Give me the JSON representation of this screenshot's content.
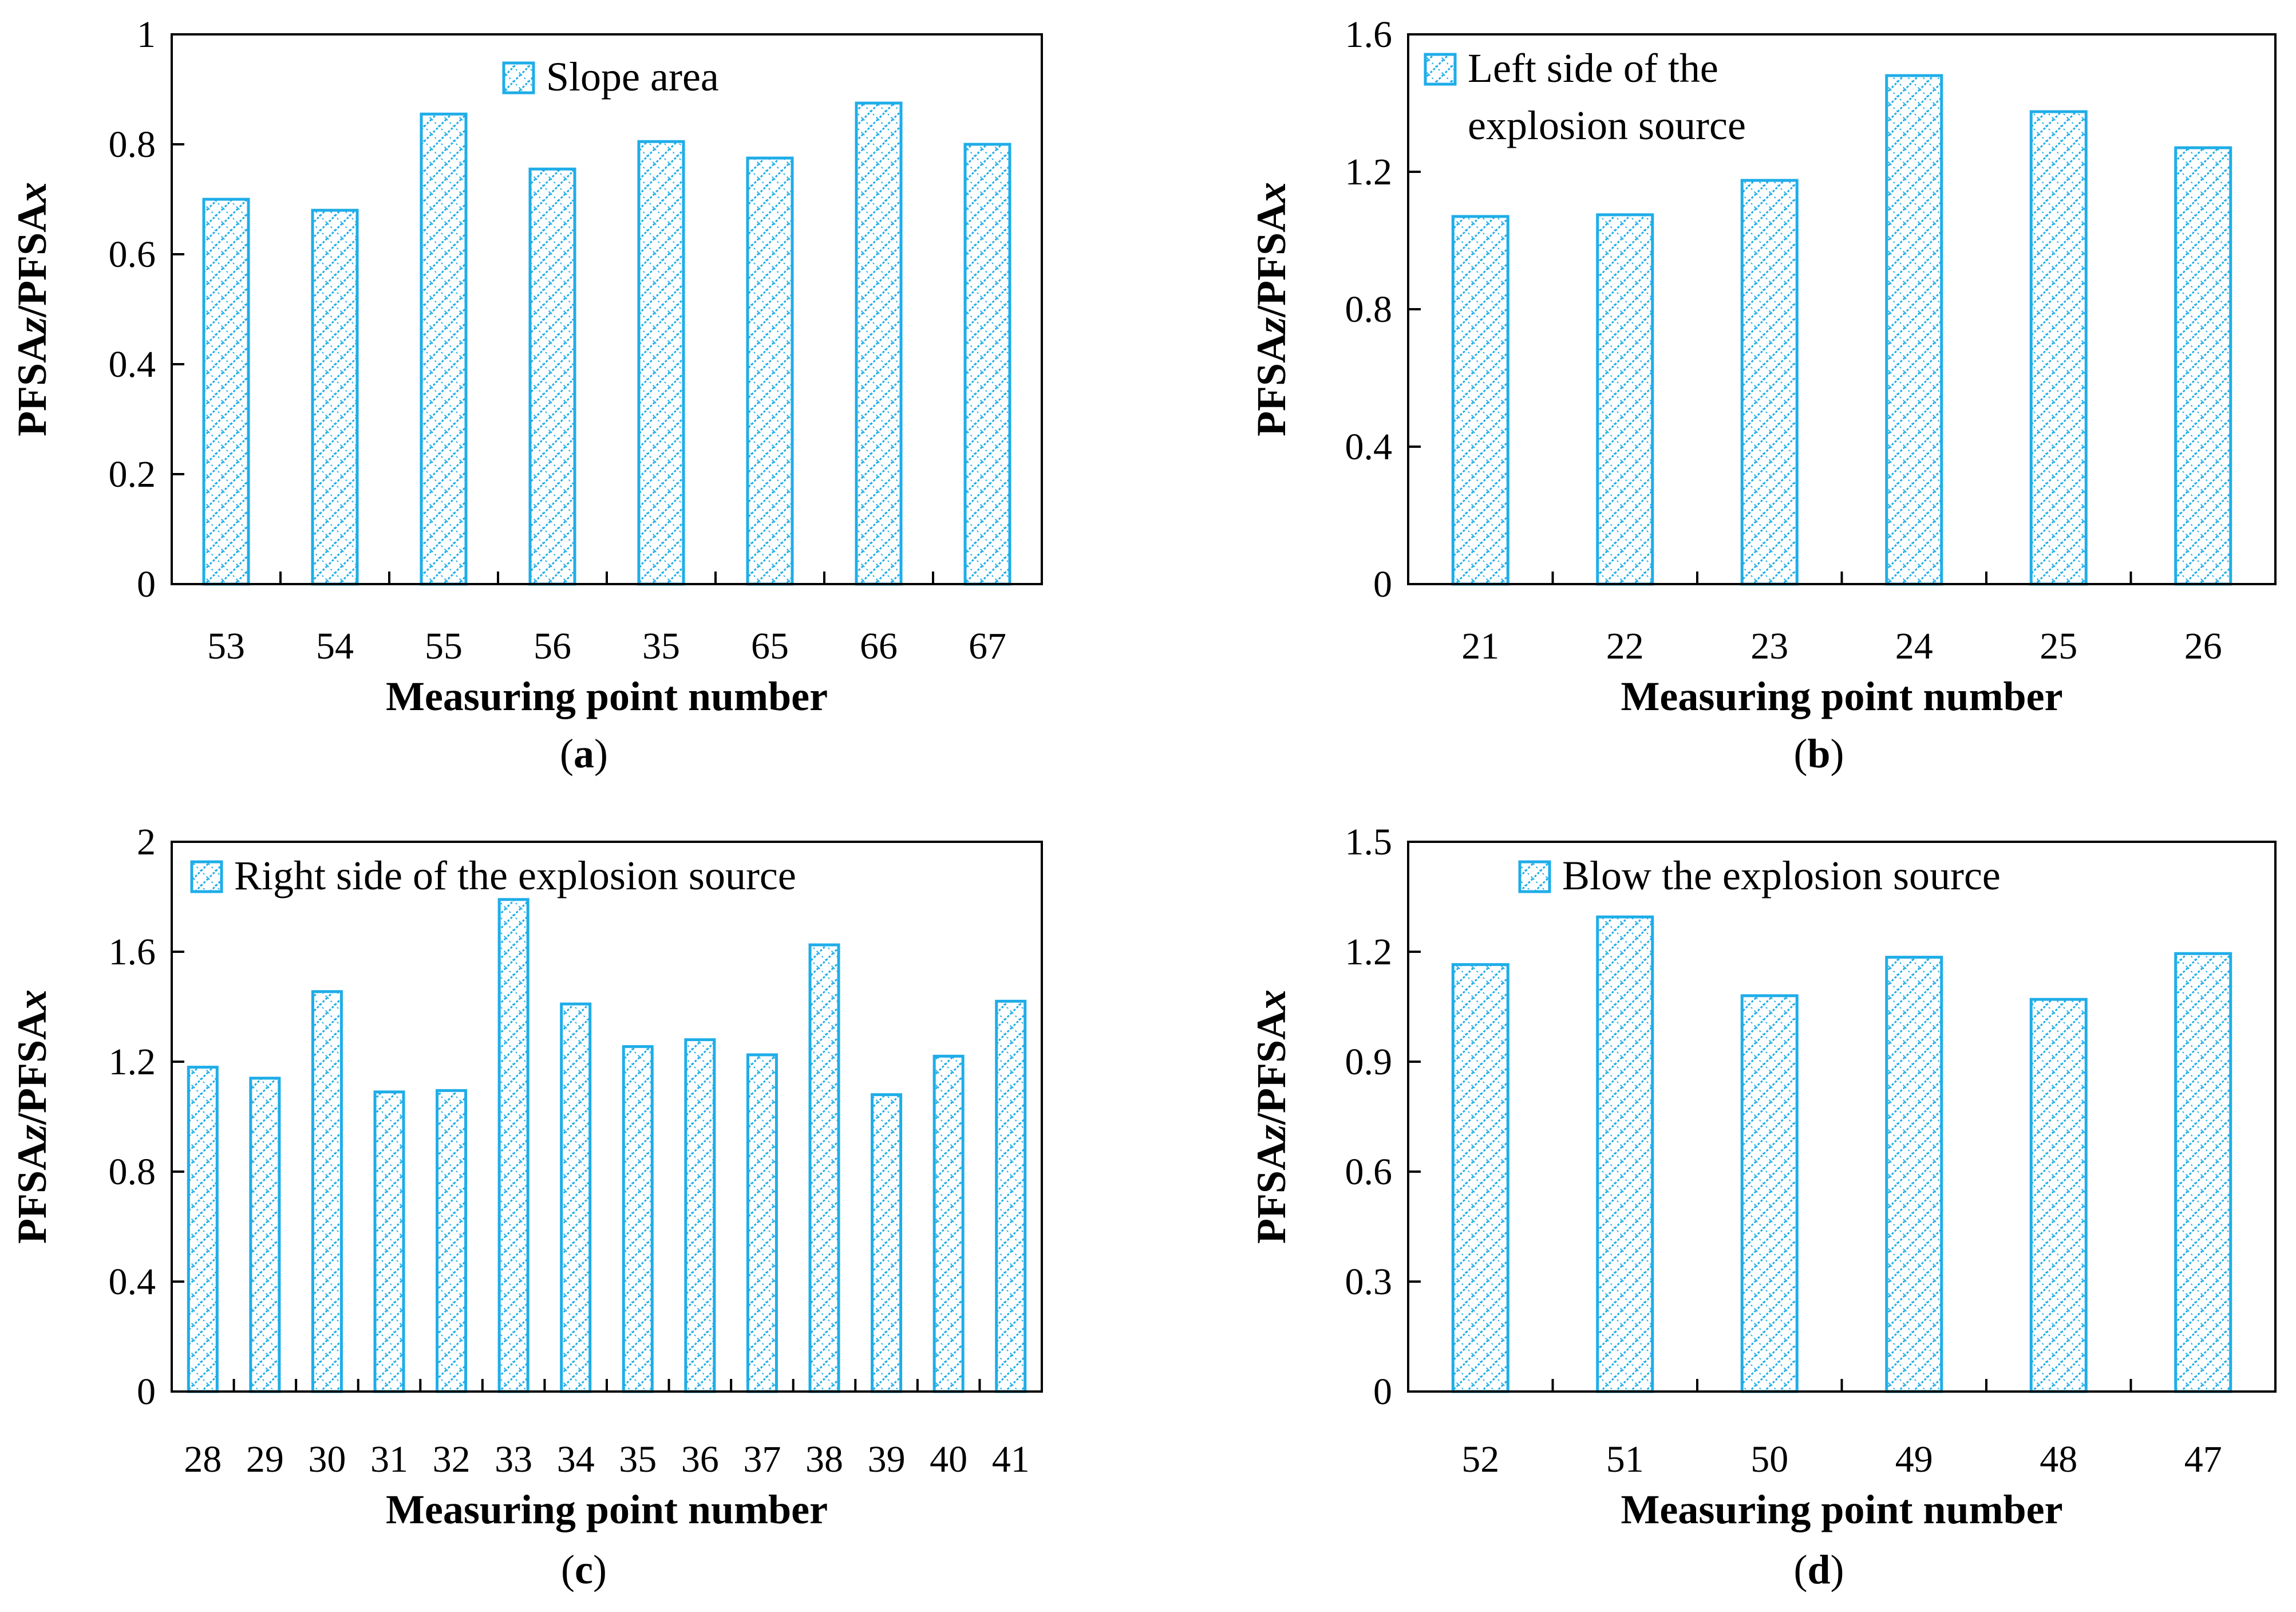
{
  "figure": {
    "colors": {
      "bar_stroke": "#1EADE8",
      "bar_hatch": "#1EADE8",
      "axis": "#000000"
    },
    "bar_fill_pattern": "diagonal-crosshatch"
  },
  "chart_data": [
    {
      "panel": "a",
      "caption": {
        "open": "(",
        "letter": "a",
        "close": ")"
      },
      "type": "bar",
      "categories": [
        "53",
        "54",
        "55",
        "56",
        "35",
        "65",
        "66",
        "67"
      ],
      "values": [
        0.7,
        0.68,
        0.855,
        0.755,
        0.805,
        0.775,
        0.875,
        0.8
      ],
      "series": [
        {
          "name": "Slope area",
          "values": [
            0.7,
            0.68,
            0.855,
            0.755,
            0.805,
            0.775,
            0.875,
            0.8
          ]
        }
      ],
      "xlabel": "Measuring point number",
      "ylabel": {
        "parts": [
          "PFSA",
          "z",
          "/PFSA",
          "x"
        ]
      },
      "ylim": [
        0,
        1
      ],
      "yticks": [
        "0",
        "0.2",
        "0.4",
        "0.6",
        "0.8",
        "1"
      ],
      "legend": {
        "lines": [
          "Slope area"
        ],
        "placement": "top-center"
      },
      "grid": false
    },
    {
      "panel": "b",
      "caption": {
        "open": "(",
        "letter": "b",
        "close": ")"
      },
      "type": "bar",
      "categories": [
        "21",
        "22",
        "23",
        "24",
        "25",
        "26"
      ],
      "values": [
        1.07,
        1.075,
        1.175,
        1.48,
        1.375,
        1.27
      ],
      "series": [
        {
          "name": "Left side of the explosion source",
          "values": [
            1.07,
            1.075,
            1.175,
            1.48,
            1.375,
            1.27
          ]
        }
      ],
      "xlabel": "Measuring point number",
      "ylabel": {
        "parts": [
          "PFSA",
          "z",
          "/PFSA",
          "x"
        ]
      },
      "ylim": [
        0,
        1.6
      ],
      "yticks": [
        "0",
        "0.4",
        "0.8",
        "1.2",
        "1.6"
      ],
      "legend": {
        "lines": [
          "Left side of the",
          "explosion source"
        ],
        "placement": "top-left"
      },
      "grid": false
    },
    {
      "panel": "c",
      "caption": {
        "open": "(",
        "letter": "c",
        "close": ")"
      },
      "type": "bar",
      "categories": [
        "28",
        "29",
        "30",
        "31",
        "32",
        "33",
        "34",
        "35",
        "36",
        "37",
        "38",
        "39",
        "40",
        "41"
      ],
      "values": [
        1.18,
        1.14,
        1.455,
        1.09,
        1.095,
        1.79,
        1.41,
        1.255,
        1.28,
        1.225,
        1.625,
        1.08,
        1.22,
        1.42
      ],
      "series": [
        {
          "name": "Right side of the explosion source",
          "values": [
            1.18,
            1.14,
            1.455,
            1.09,
            1.095,
            1.79,
            1.41,
            1.255,
            1.28,
            1.225,
            1.625,
            1.08,
            1.22,
            1.42
          ]
        }
      ],
      "xlabel": "Measuring point number",
      "ylabel": {
        "parts": [
          "PFSA",
          "z",
          "/PFSA",
          "x"
        ]
      },
      "ylim": [
        0,
        2
      ],
      "yticks": [
        "0",
        "0.4",
        "0.8",
        "1.2",
        "1.6",
        "2"
      ],
      "legend": {
        "lines": [
          "Right side of the explosion source"
        ],
        "placement": "top-left"
      },
      "grid": false
    },
    {
      "panel": "d",
      "caption": {
        "open": "(",
        "letter": "d",
        "close": ")"
      },
      "type": "bar",
      "categories": [
        "52",
        "51",
        "50",
        "49",
        "48",
        "47"
      ],
      "values": [
        1.165,
        1.295,
        1.08,
        1.185,
        1.07,
        1.195
      ],
      "series": [
        {
          "name": "Blow the explosion source",
          "values": [
            1.165,
            1.295,
            1.08,
            1.185,
            1.07,
            1.195
          ]
        }
      ],
      "xlabel": "Measuring point number",
      "ylabel": {
        "parts": [
          "PFSA",
          "z",
          "/PFSA",
          "x"
        ]
      },
      "ylim": [
        0,
        1.5
      ],
      "yticks": [
        "0",
        "0.3",
        "0.6",
        "0.9",
        "1.2",
        "1.5"
      ],
      "legend": {
        "lines": [
          "Blow the explosion source"
        ],
        "placement": "top-center"
      },
      "grid": false
    }
  ]
}
